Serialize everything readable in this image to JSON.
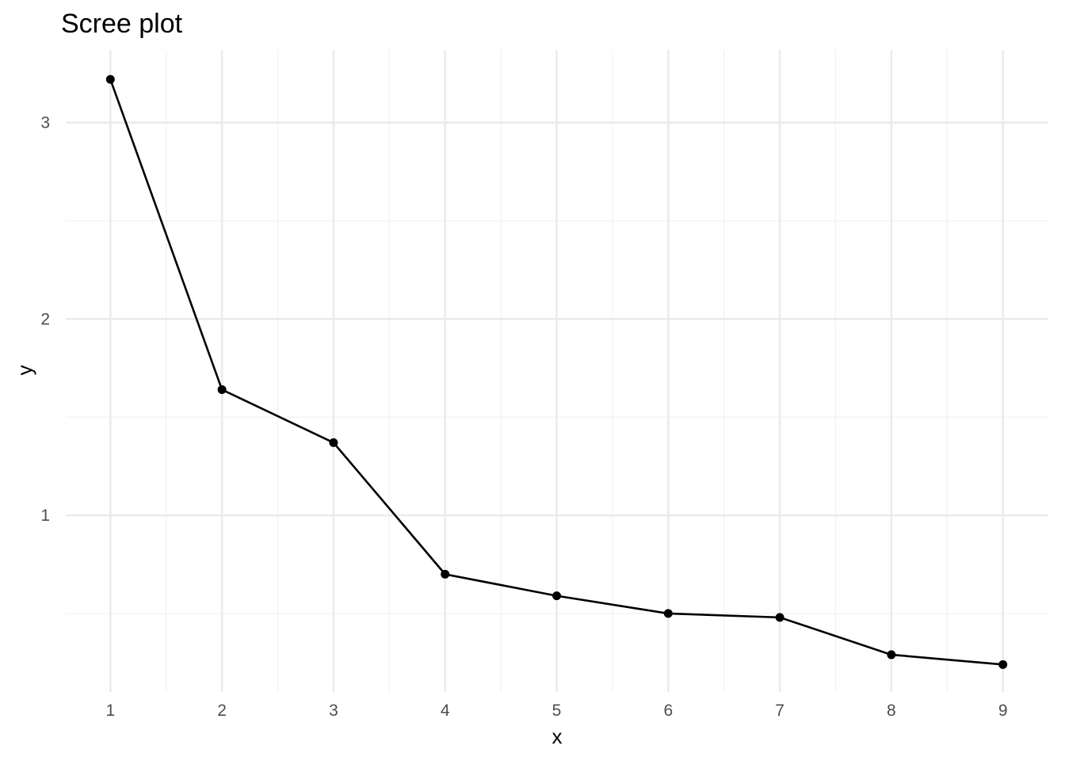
{
  "chart_data": {
    "type": "line",
    "title": "Scree plot",
    "xlabel": "x",
    "ylabel": "y",
    "x": [
      1,
      2,
      3,
      4,
      5,
      6,
      7,
      8,
      9
    ],
    "values": [
      3.22,
      1.64,
      1.37,
      0.7,
      0.59,
      0.5,
      0.48,
      0.29,
      0.24
    ],
    "xlim": [
      0.6,
      9.4
    ],
    "ylim": [
      0.1,
      3.37
    ],
    "x_ticks": [
      1,
      2,
      3,
      4,
      5,
      6,
      7,
      8,
      9
    ],
    "y_ticks": [
      1,
      2,
      3
    ],
    "x_minor_ticks": [
      1.5,
      2.5,
      3.5,
      4.5,
      5.5,
      6.5,
      7.5,
      8.5
    ],
    "y_minor_ticks": [
      0.5,
      1.5,
      2.5
    ],
    "grid": true,
    "legend": "none",
    "line_color": "#000000",
    "point_color": "#000000",
    "grid_color": "#ebebeb"
  }
}
